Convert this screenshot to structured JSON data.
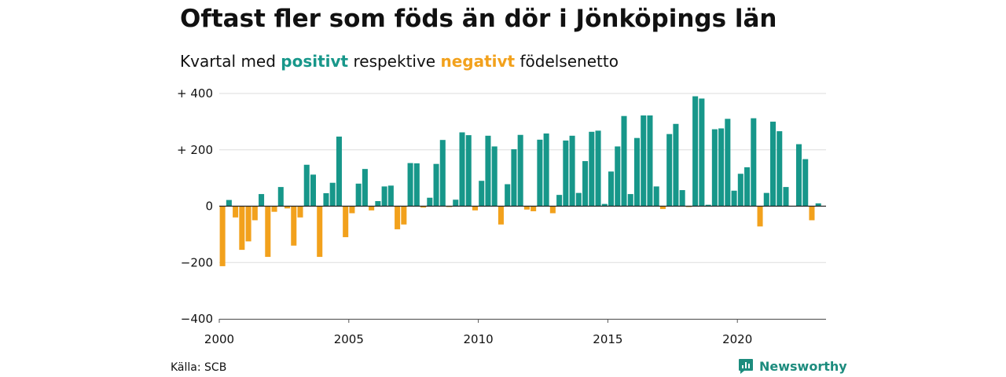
{
  "title": "Oftast fler som föds än dör i Jönköpings län",
  "subtitle": {
    "prefix": "Kvartal med ",
    "positive_word": "positivt",
    "middle": " respektive ",
    "negative_word": "negativt",
    "suffix": " födelsenetto"
  },
  "source": "Källa: SCB",
  "brand": {
    "name": "Newsworthy",
    "icon": "newsworthy-logo-icon"
  },
  "colors": {
    "positive": "#17978a",
    "negative": "#f2a11c",
    "grid": "#dddddd",
    "axis": "#555555"
  },
  "chart_data": {
    "type": "bar",
    "x_start": 2000,
    "x_step": "quarter",
    "ylim": [
      -400,
      400
    ],
    "y_ticks": [
      {
        "value": 400,
        "label": "+ 400"
      },
      {
        "value": 200,
        "label": "+ 200"
      },
      {
        "value": 0,
        "label": "0"
      },
      {
        "value": -200,
        "label": "−200"
      },
      {
        "value": -400,
        "label": "−400"
      }
    ],
    "x_ticks": [
      {
        "year": 2000,
        "label": "2000"
      },
      {
        "year": 2005,
        "label": "2005"
      },
      {
        "year": 2010,
        "label": "2010"
      },
      {
        "year": 2015,
        "label": "2015"
      },
      {
        "year": 2020,
        "label": "2020"
      }
    ],
    "values": [
      -213,
      22,
      -40,
      -155,
      -125,
      -50,
      43,
      -180,
      -20,
      68,
      -8,
      -140,
      -40,
      147,
      112,
      -180,
      46,
      83,
      247,
      -110,
      -25,
      80,
      132,
      -15,
      18,
      70,
      73,
      -82,
      -65,
      153,
      152,
      -5,
      30,
      150,
      235,
      -3,
      23,
      262,
      252,
      -15,
      90,
      250,
      212,
      -65,
      78,
      202,
      253,
      -12,
      -18,
      236,
      258,
      -25,
      40,
      233,
      250,
      47,
      160,
      264,
      268,
      8,
      123,
      212,
      320,
      43,
      242,
      322,
      322,
      70,
      -10,
      256,
      292,
      57,
      -3,
      390,
      382,
      5,
      273,
      276,
      310,
      55,
      115,
      138,
      312,
      -72,
      47,
      300,
      266,
      68,
      0,
      220,
      167,
      -50,
      10
    ]
  }
}
